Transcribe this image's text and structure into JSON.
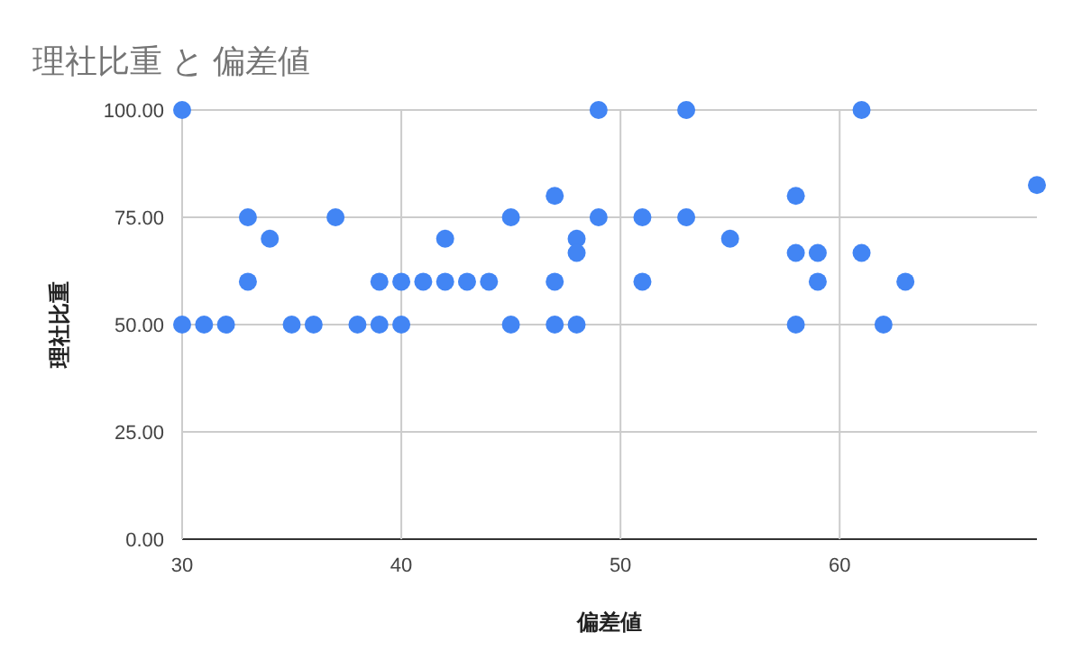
{
  "chart_data": {
    "type": "scatter",
    "title": "理社比重 と 偏差値",
    "xlabel": "偏差値",
    "ylabel": "理社比重",
    "marker": "circle",
    "grid": true,
    "xlim": [
      30,
      69
    ],
    "xticks": [
      30,
      40,
      50,
      60
    ],
    "ylim": [
      0,
      100
    ],
    "yticks": [
      {
        "value": 0,
        "label": "0.00"
      },
      {
        "value": 25,
        "label": "25.00"
      },
      {
        "value": 50,
        "label": "50.00"
      },
      {
        "value": 75,
        "label": "75.00"
      },
      {
        "value": 100,
        "label": "100.00"
      }
    ],
    "series": [
      {
        "color": "#4285f4",
        "x": [
          30,
          30,
          31,
          32,
          33,
          33,
          34,
          35,
          36,
          37,
          38,
          39,
          39,
          40,
          40,
          41,
          42,
          42,
          43,
          44,
          45,
          45,
          47,
          47,
          47,
          48,
          48,
          48,
          49,
          49,
          51,
          51,
          53,
          53,
          55,
          58,
          58,
          58,
          59,
          59,
          61,
          61,
          62,
          63,
          69
        ],
        "values": [
          100,
          50,
          50,
          50,
          75,
          60,
          70,
          50,
          50,
          75,
          50,
          60,
          50,
          60,
          50,
          60,
          70,
          60,
          60,
          60,
          75,
          50,
          80,
          60,
          50,
          70,
          66.7,
          50,
          100,
          75,
          75,
          60,
          100,
          75,
          70,
          80,
          66.7,
          50,
          66.7,
          60,
          100,
          66.7,
          50,
          60,
          82.5
        ]
      }
    ]
  }
}
